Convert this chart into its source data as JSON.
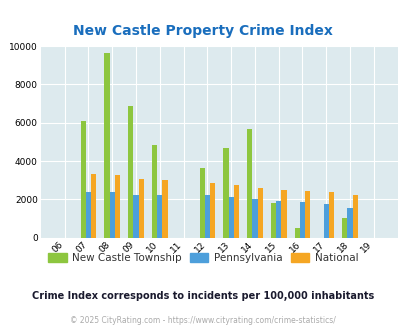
{
  "title": "New Castle Property Crime Index",
  "years": [
    "06",
    "07",
    "08",
    "09",
    "10",
    "11",
    "12",
    "13",
    "14",
    "15",
    "16",
    "17",
    "18",
    "19"
  ],
  "new_castle": [
    0,
    6100,
    9650,
    6900,
    4850,
    0,
    3650,
    4700,
    5700,
    1800,
    500,
    0,
    1050,
    0
  ],
  "pennsylvania": [
    0,
    2400,
    2400,
    2200,
    2200,
    0,
    2200,
    2100,
    2000,
    1900,
    1850,
    1750,
    1550,
    0
  ],
  "national": [
    0,
    3300,
    3250,
    3050,
    3000,
    0,
    2850,
    2750,
    2600,
    2500,
    2450,
    2400,
    2200,
    0
  ],
  "color_new_castle": "#8dc63f",
  "color_pennsylvania": "#4d9fdb",
  "color_national": "#f5a623",
  "color_title": "#1a6ebd",
  "color_bg": "#ddeaee",
  "color_subtitle": "#1a1a2e",
  "color_footer": "#aaaaaa",
  "ylim": [
    0,
    10000
  ],
  "yticks": [
    0,
    2000,
    4000,
    6000,
    8000,
    10000
  ],
  "subtitle": "Crime Index corresponds to incidents per 100,000 inhabitants",
  "footer": "© 2025 CityRating.com - https://www.cityrating.com/crime-statistics/",
  "legend_labels": [
    "New Castle Township",
    "Pennsylvania",
    "National"
  ],
  "bar_width": 0.22
}
